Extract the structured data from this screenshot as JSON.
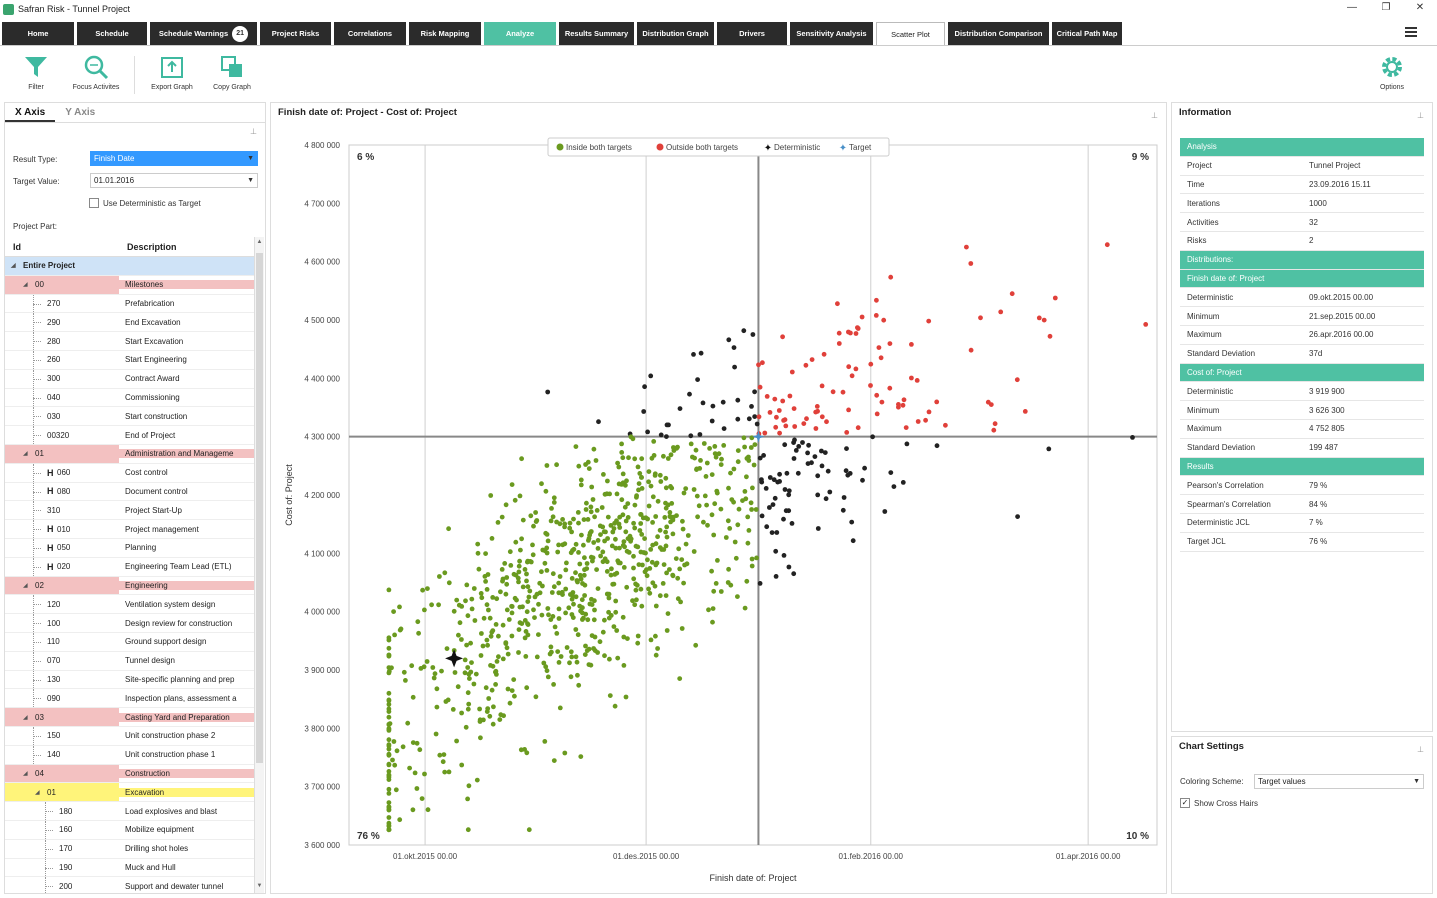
{
  "window": {
    "title": "Safran Risk - Tunnel Project",
    "btn_min": "—",
    "btn_max": "❐",
    "btn_close": "✕"
  },
  "tabs": [
    {
      "label": "Home"
    },
    {
      "label": "Schedule"
    },
    {
      "label": "Schedule Warnings",
      "badge": "21"
    },
    {
      "label": "Project Risks"
    },
    {
      "label": "Correlations"
    },
    {
      "label": "Risk Mapping"
    },
    {
      "label": "Analyze"
    },
    {
      "label": "Results Summary"
    },
    {
      "label": "Distribution Graph"
    },
    {
      "label": "Drivers"
    },
    {
      "label": "Sensitivity Analysis"
    },
    {
      "label": "Scatter Plot"
    },
    {
      "label": "Distribution Comparison"
    },
    {
      "label": "Critical Path Map"
    }
  ],
  "toolbar": {
    "filter": "Filter",
    "focus": "Focus Activites",
    "export": "Export Graph",
    "copy": "Copy Graph",
    "options": "Options"
  },
  "left": {
    "tab_x": "X Axis",
    "tab_y": "Y Axis",
    "result_type_label": "Result Type:",
    "result_type_value": "Finish Date",
    "target_value_label": "Target Value:",
    "target_value_value": "01.01.2016",
    "use_det_label": "Use Deterministic as Target",
    "project_part_label": "Project Part:",
    "col_id": "Id",
    "col_desc": "Description",
    "rows": [
      {
        "id": "Entire Project",
        "desc": "",
        "lvl": 0,
        "style": "root",
        "exp": true
      },
      {
        "id": "00",
        "desc": "Milestones",
        "lvl": 1,
        "style": "pink",
        "exp": true
      },
      {
        "id": "270",
        "desc": "Prefabrication",
        "lvl": 2
      },
      {
        "id": "290",
        "desc": "End Excavation",
        "lvl": 2
      },
      {
        "id": "280",
        "desc": "Start Excavation",
        "lvl": 2
      },
      {
        "id": "260",
        "desc": "Start Engineering",
        "lvl": 2
      },
      {
        "id": "300",
        "desc": "Contract Award",
        "lvl": 2
      },
      {
        "id": "040",
        "desc": "Commissioning",
        "lvl": 2
      },
      {
        "id": "030",
        "desc": "Start construction",
        "lvl": 2
      },
      {
        "id": "00320",
        "desc": "End of Project",
        "lvl": 2
      },
      {
        "id": "01",
        "desc": "Administration and Manageme",
        "lvl": 1,
        "style": "pink",
        "exp": true
      },
      {
        "id": "060",
        "desc": "Cost control",
        "lvl": 2,
        "h": true
      },
      {
        "id": "080",
        "desc": "Document control",
        "lvl": 2,
        "h": true
      },
      {
        "id": "310",
        "desc": "Project Start-Up",
        "lvl": 2
      },
      {
        "id": "010",
        "desc": "Project management",
        "lvl": 2,
        "h": true
      },
      {
        "id": "050",
        "desc": "Planning",
        "lvl": 2,
        "h": true
      },
      {
        "id": "020",
        "desc": "Engineering Team Lead (ETL)",
        "lvl": 2,
        "h": true
      },
      {
        "id": "02",
        "desc": "Engineering",
        "lvl": 1,
        "style": "pink",
        "exp": true
      },
      {
        "id": "120",
        "desc": "Ventilation system design",
        "lvl": 2
      },
      {
        "id": "100",
        "desc": "Design review for construction",
        "lvl": 2
      },
      {
        "id": "110",
        "desc": "Ground support design",
        "lvl": 2
      },
      {
        "id": "070",
        "desc": "Tunnel design",
        "lvl": 2
      },
      {
        "id": "130",
        "desc": "Site-specific planning and prep",
        "lvl": 2
      },
      {
        "id": "090",
        "desc": "Inspection plans, assessment a",
        "lvl": 2
      },
      {
        "id": "03",
        "desc": "Casting Yard and Preparation",
        "lvl": 1,
        "style": "pink",
        "exp": true
      },
      {
        "id": "150",
        "desc": "Unit construction phase 2",
        "lvl": 2
      },
      {
        "id": "140",
        "desc": "Unit construction phase 1",
        "lvl": 2
      },
      {
        "id": "04",
        "desc": "Construction",
        "lvl": 1,
        "style": "pink",
        "exp": true
      },
      {
        "id": "01",
        "desc": "Excavation",
        "lvl": 2,
        "style": "yellow",
        "exp": true
      },
      {
        "id": "180",
        "desc": "Load explosives and blast",
        "lvl": 3
      },
      {
        "id": "160",
        "desc": "Mobilize equipment",
        "lvl": 3
      },
      {
        "id": "170",
        "desc": "Drilling shot holes",
        "lvl": 3
      },
      {
        "id": "190",
        "desc": "Muck and Hull",
        "lvl": 3
      },
      {
        "id": "200",
        "desc": "Support and dewater tunnel",
        "lvl": 3
      }
    ]
  },
  "chart_title": "Finish date of: Project - Cost of: Project",
  "chart_data": {
    "type": "scatter",
    "xlabel": "Finish date of: Project",
    "ylabel": "Cost of: Project",
    "x_ticks": [
      "01.okt.2015 00.00",
      "01.des.2015 00.00",
      "01.feb.2016 00.00",
      "01.apr.2016 00.00"
    ],
    "x_range": [
      "2015-09-10",
      "2016-04-20"
    ],
    "y_ticks": [
      "3 600 000",
      "3 700 000",
      "3 800 000",
      "3 900 000",
      "4 000 000",
      "4 100 000",
      "4 200 000",
      "4 300 000",
      "4 400 000",
      "4 500 000",
      "4 600 000",
      "4 700 000",
      "4 800 000"
    ],
    "ylim": [
      3600000,
      4800000
    ],
    "target": {
      "x": "2016-01-01",
      "y": 4300000
    },
    "deterministic": {
      "x": "2015-10-09",
      "y": 3919900
    },
    "quadrants": {
      "top_left": "6 %",
      "top_right": "9 %",
      "bottom_left": "76 %",
      "bottom_right": "10 %"
    },
    "legend": [
      {
        "name": "Inside both targets",
        "color": "#6a9a1f"
      },
      {
        "name": "Outside both targets",
        "color": "#e0403a"
      },
      {
        "name": "Deterministic",
        "color": "#111111"
      },
      {
        "name": "Target",
        "color": "#4a90c8"
      }
    ],
    "series_colors": {
      "inside": "#6a9a1f",
      "outside": "#e0403a",
      "other": "#222222"
    },
    "iterations": 1000,
    "grid": true,
    "legend_placement": "top-center"
  },
  "info": {
    "title": "Information",
    "rows": [
      {
        "k": "Analysis",
        "sec": true
      },
      {
        "k": "Project",
        "v": "Tunnel Project"
      },
      {
        "k": "Time",
        "v": "23.09.2016 15.11"
      },
      {
        "k": "Iterations",
        "v": "1000"
      },
      {
        "k": "Activities",
        "v": "32"
      },
      {
        "k": "Risks",
        "v": "2"
      },
      {
        "k": "Distributions:",
        "sec": true
      },
      {
        "k": "Finish date of: Project",
        "sec": true
      },
      {
        "k": "Deterministic",
        "v": "09.okt.2015 00.00"
      },
      {
        "k": "Minimum",
        "v": "21.sep.2015 00.00"
      },
      {
        "k": "Maximum",
        "v": "26.apr.2016 00.00"
      },
      {
        "k": "Standard Deviation",
        "v": "37d"
      },
      {
        "k": "Cost of: Project",
        "sec": true
      },
      {
        "k": "Deterministic",
        "v": "3 919 900"
      },
      {
        "k": "Minimum",
        "v": "3 626 300"
      },
      {
        "k": "Maximum",
        "v": "4 752 805"
      },
      {
        "k": "Standard Deviation",
        "v": "199 487"
      },
      {
        "k": "Results",
        "sec": true
      },
      {
        "k": "Pearson's Correlation",
        "v": "79 %"
      },
      {
        "k": "Spearman's Correlation",
        "v": "84 %"
      },
      {
        "k": "Deterministic JCL",
        "v": "7 %"
      },
      {
        "k": "Target JCL",
        "v": "76 %"
      }
    ]
  },
  "chart_settings": {
    "title": "Chart Settings",
    "coloring_label": "Coloring Scheme:",
    "coloring_value": "Target values",
    "crosshairs_label": "Show Cross Hairs"
  }
}
